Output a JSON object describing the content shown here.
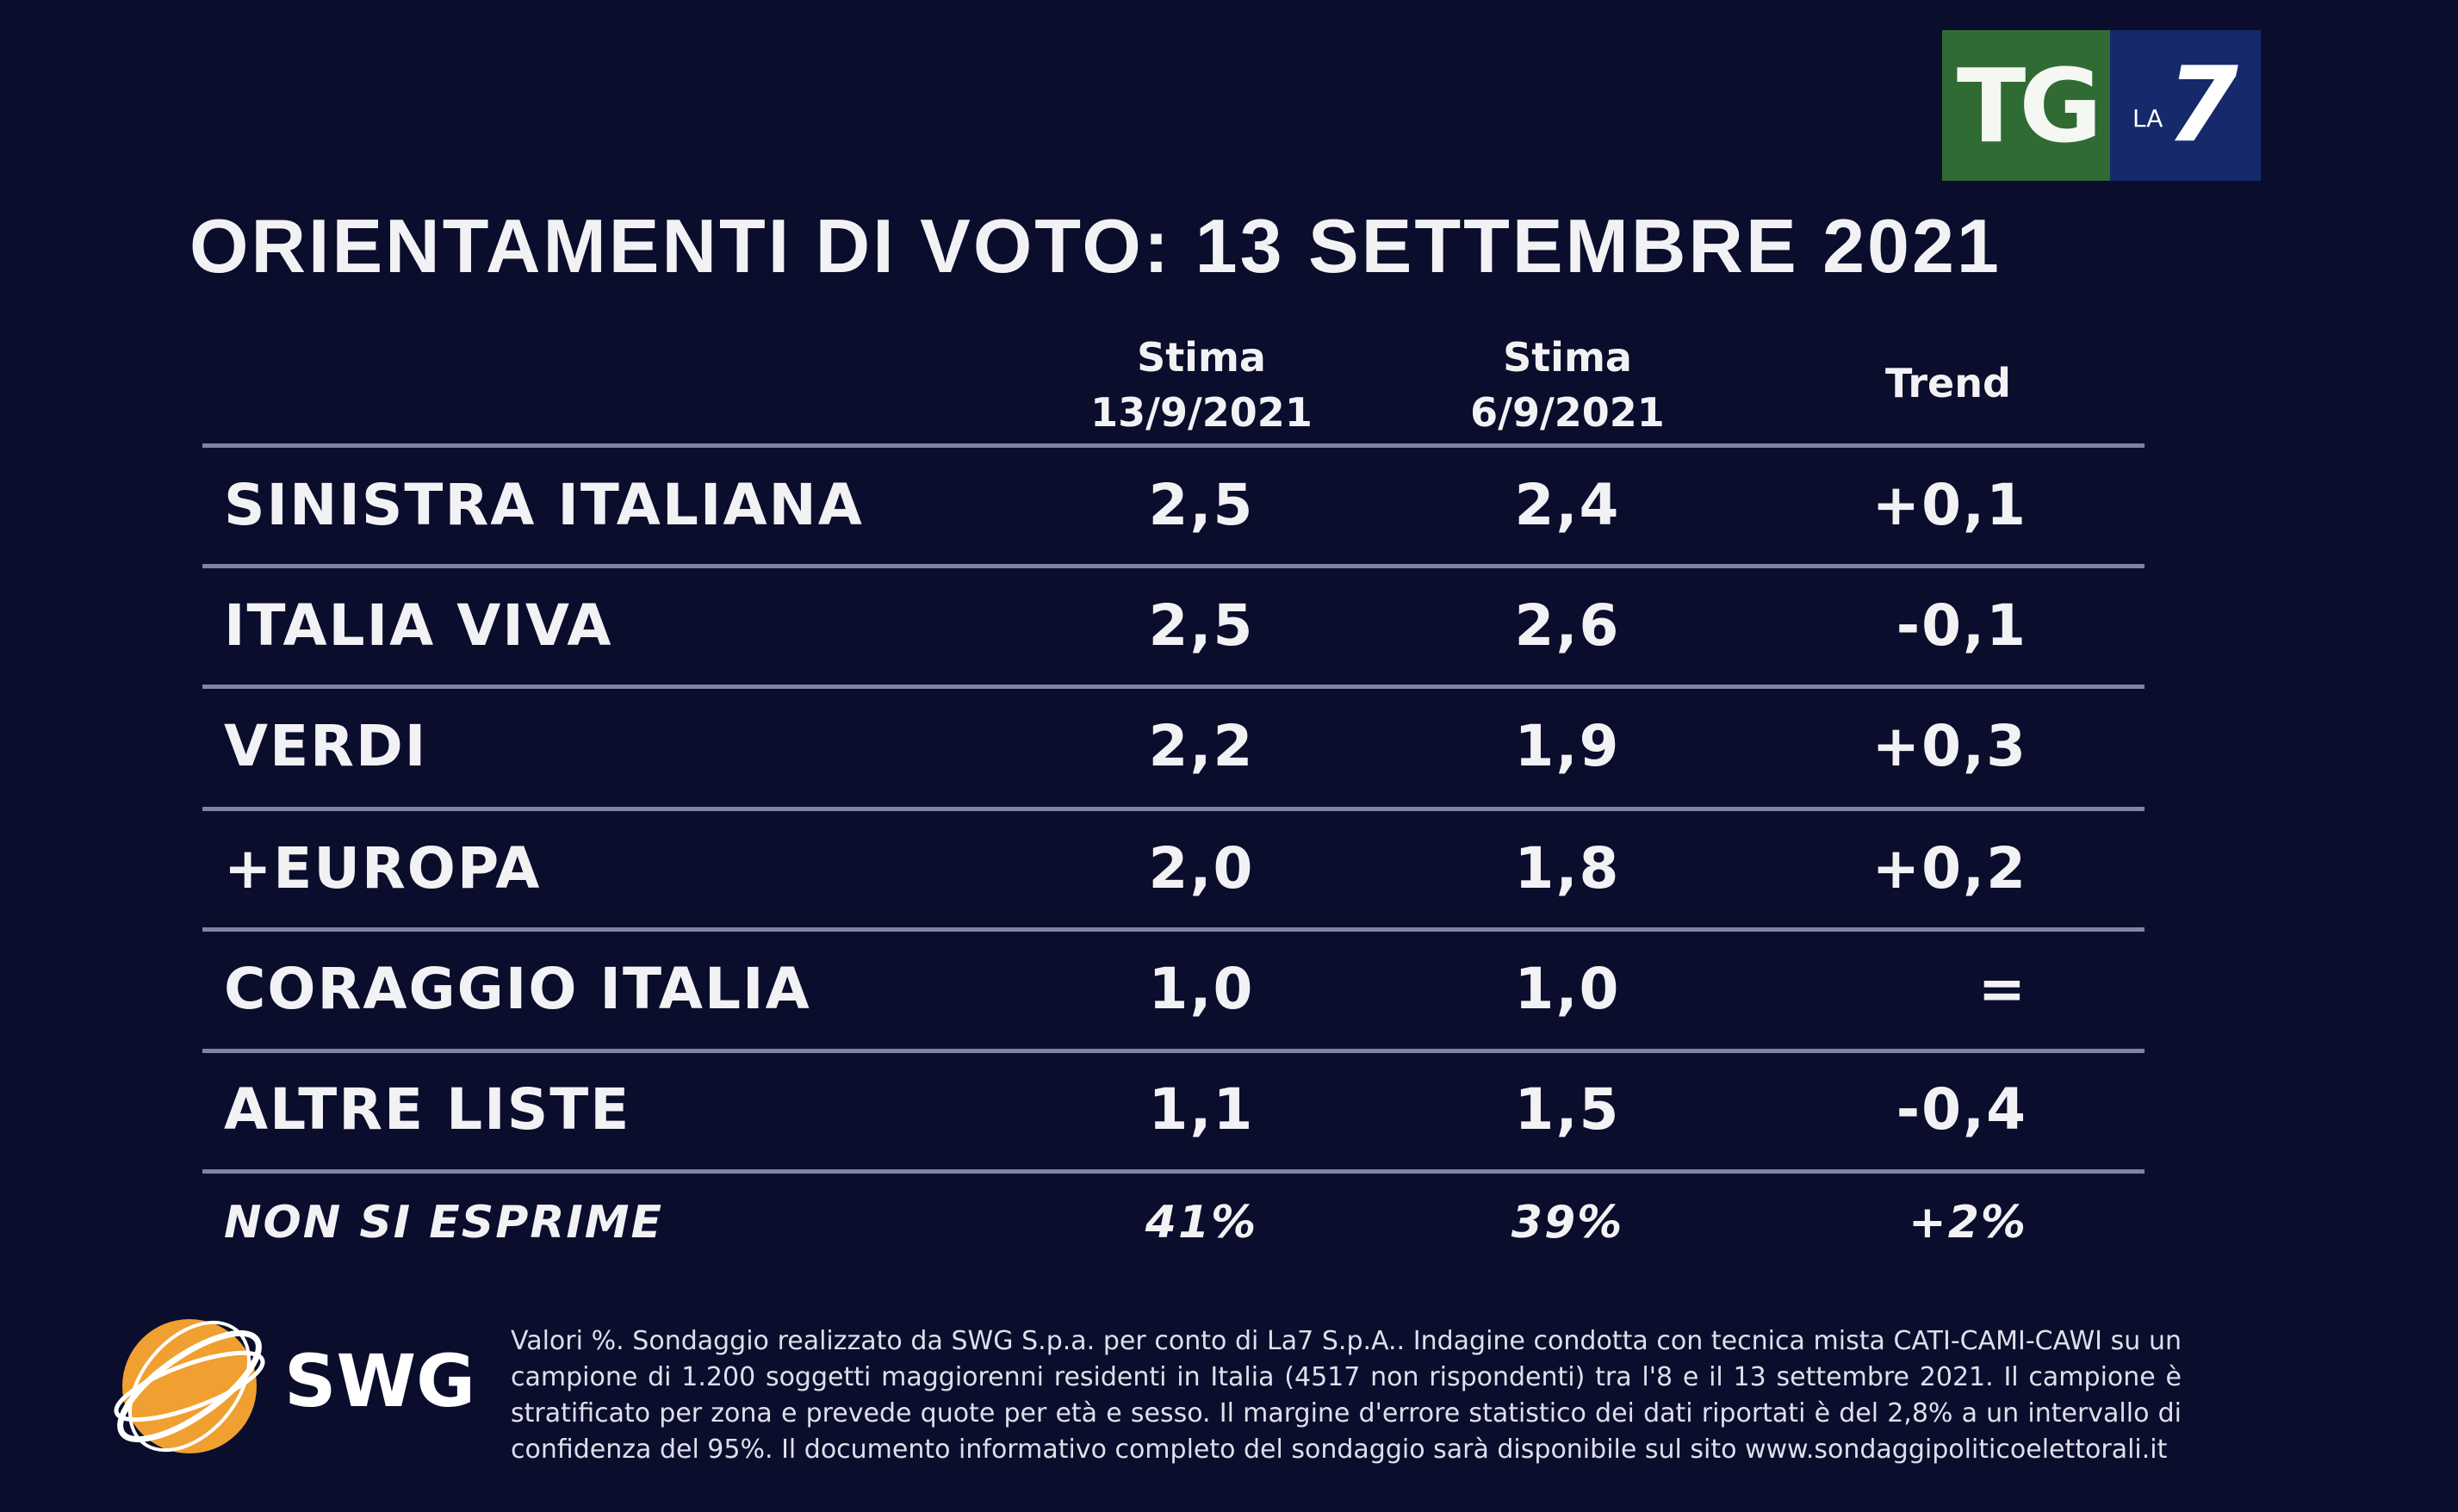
{
  "title": "ORIENTAMENTI DI VOTO: 13 SETTEMBRE 2021",
  "logo": {
    "tg": "TG",
    "la": "LA",
    "seven": "7",
    "green": "#2f6b33",
    "blue": "#15296b"
  },
  "columns": [
    {
      "line1": "Stima",
      "line2": "13/9/2021"
    },
    {
      "line1": "Stima",
      "line2": "6/9/2021"
    },
    {
      "line1": "Trend",
      "line2": ""
    }
  ],
  "rows": [
    {
      "party": "SINISTRA ITALIANA",
      "a": "2,5",
      "b": "2,4",
      "trend": "+0,1"
    },
    {
      "party": "ITALIA VIVA",
      "a": "2,5",
      "b": "2,6",
      "trend": "-0,1"
    },
    {
      "party": "VERDI",
      "a": "2,2",
      "b": "1,9",
      "trend": "+0,3"
    },
    {
      "party": "+EUROPA",
      "a": "2,0",
      "b": "1,8",
      "trend": "+0,2"
    },
    {
      "party": "CORAGGIO ITALIA",
      "a": "1,0",
      "b": "1,0",
      "trend": "="
    },
    {
      "party": "ALTRE LISTE",
      "a": "1,1",
      "b": "1,5",
      "trend": "-0,4"
    },
    {
      "party": "NON SI ESPRIME",
      "a": "41%",
      "b": "39%",
      "trend": "+2%"
    }
  ],
  "swg": {
    "name": "SWG",
    "globe_color": "#f0a030"
  },
  "footnote": "Valori %. Sondaggio realizzato da SWG S.p.a. per conto di La7 S.p.A.. Indagine condotta con tecnica mista CATI-CAMI-CAWI su un campione di 1.200 soggetti maggiorenni residenti in Italia (4517 non rispondenti) tra l'8 e il 13 settembre 2021. Il campione è stratificato per zona e prevede quote per età e sesso. Il margine d'errore statistico dei dati riportati è del 2,8% a un intervallo di confidenza del 95%. Il documento informativo completo del sondaggio sarà disponibile sul sito www.sondaggipoliticoelettorali.it"
}
